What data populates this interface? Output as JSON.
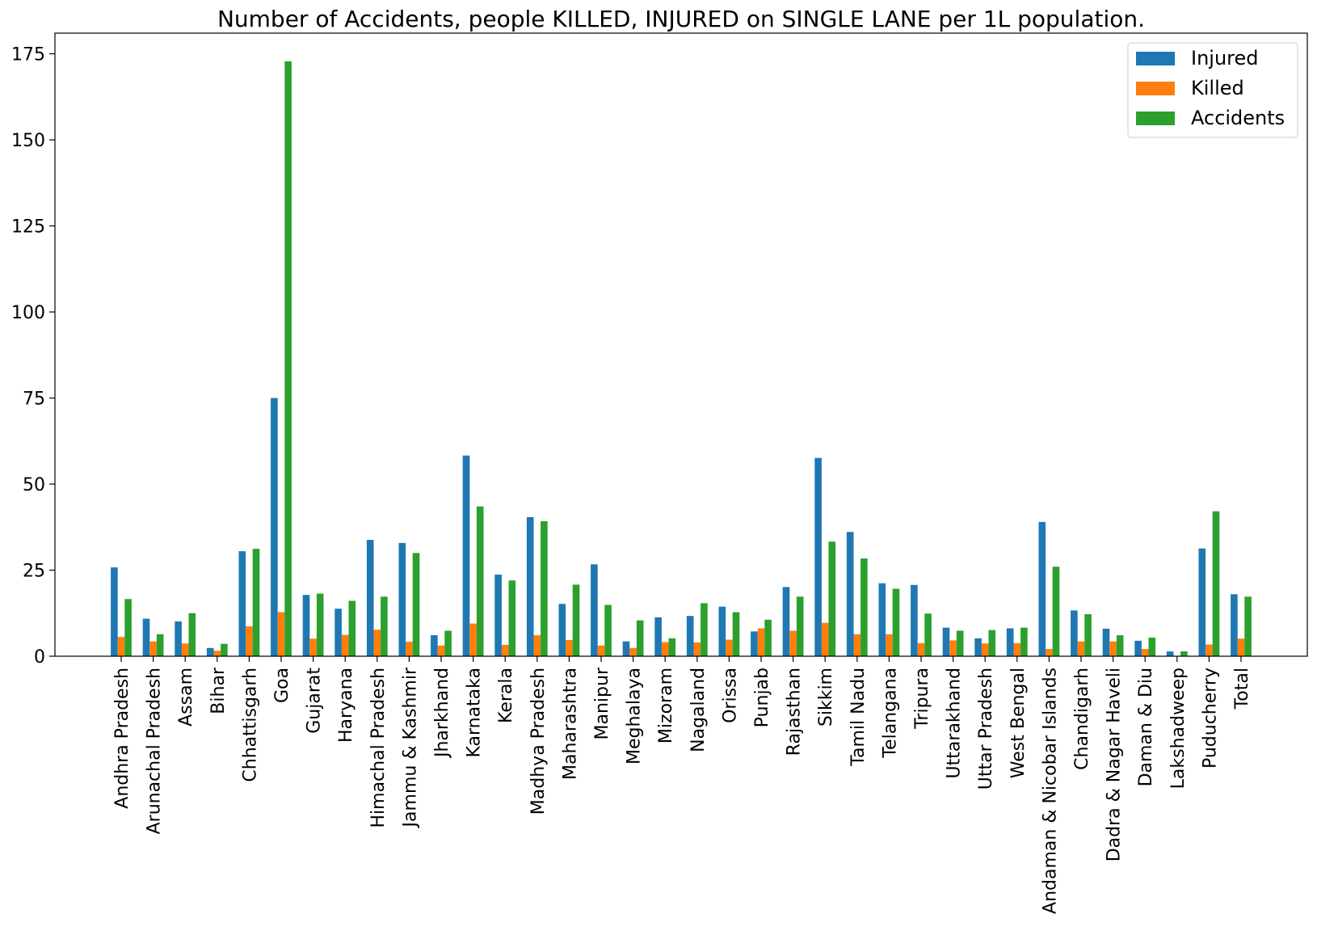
{
  "chart_data": {
    "type": "bar",
    "title": "Number of Accidents, people KILLED, INJURED on SINGLE LANE per 1L population.",
    "xlabel": "",
    "ylabel": "",
    "ylim": [
      0,
      181
    ],
    "yticks": [
      0,
      25,
      50,
      75,
      100,
      125,
      150,
      175
    ],
    "grid": false,
    "legend_position": "top-right",
    "categories": [
      "Andhra Pradesh",
      "Arunachal Pradesh",
      "Assam",
      "Bihar",
      "Chhattisgarh",
      "Goa",
      "Gujarat",
      "Haryana",
      "Himachal Pradesh",
      "Jammu & Kashmir",
      "Jharkhand",
      "Karnataka",
      "Kerala",
      "Madhya Pradesh",
      "Maharashtra",
      "Manipur",
      "Meghalaya",
      "Mizoram",
      "Nagaland",
      "Orissa",
      "Punjab",
      "Rajasthan",
      "Sikkim",
      "Tamil Nadu",
      "Telangana",
      "Tripura",
      "Uttarakhand",
      "Uttar Pradesh",
      "West Bengal",
      "Andaman & Nicobar Islands",
      "Chandigarh",
      "Dadra & Nagar Haveli",
      "Daman & Diu",
      "Lakshadweep",
      "Puducherry",
      "Total"
    ],
    "series": [
      {
        "name": "Injured",
        "color": "#1f77b4",
        "values": [
          25.8,
          10.9,
          10.1,
          2.4,
          30.5,
          75,
          17.8,
          13.8,
          33.8,
          32.9,
          6.1,
          58.3,
          23.7,
          40.4,
          15.2,
          26.7,
          4.3,
          11.3,
          11.7,
          14.4,
          7.2,
          20.1,
          57.6,
          36.1,
          21.2,
          20.7,
          8.3,
          5.2,
          8.1,
          39,
          13.3,
          8,
          4.5,
          1.4,
          31.3,
          18
        ]
      },
      {
        "name": "Killed",
        "color": "#ff7f0e",
        "values": [
          5.6,
          4.3,
          3.7,
          1.6,
          8.7,
          12.8,
          5.1,
          6.2,
          7.7,
          4.2,
          3.1,
          9.5,
          3.3,
          6.1,
          4.7,
          3.1,
          2.4,
          4.1,
          4.0,
          4.8,
          8.1,
          7.4,
          9.7,
          6.4,
          6.4,
          3.8,
          4.6,
          3.7,
          3.8,
          2.1,
          4.3,
          4.3,
          2.1,
          0,
          3.4,
          5.1
        ]
      },
      {
        "name": "Accidents",
        "color": "#2ca02c",
        "values": [
          16.6,
          6.4,
          12.5,
          3.6,
          31.2,
          172.8,
          18.2,
          16.1,
          17.3,
          30,
          7.4,
          43.5,
          22,
          39.2,
          20.8,
          14.9,
          10.4,
          5.2,
          15.4,
          12.8,
          10.6,
          17.3,
          33.3,
          28.4,
          19.6,
          12.4,
          7.4,
          7.6,
          8.3,
          26,
          12.2,
          6.1,
          5.4,
          1.4,
          42.1,
          17.3
        ]
      }
    ]
  }
}
